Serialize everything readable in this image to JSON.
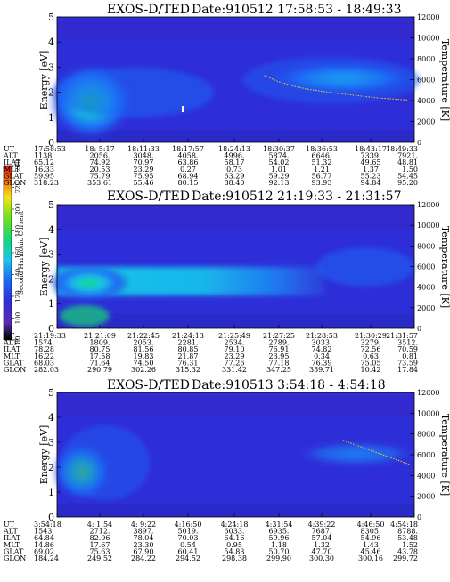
{
  "chart_data": {
    "type": "heatmap",
    "colorbar": {
      "label": "Second Harmonic Current",
      "ticks": [
        "80",
        "100",
        "120",
        "140",
        "160",
        "180",
        "200",
        "220",
        "240"
      ],
      "colors": [
        "#000000",
        "#5a2bb5",
        "#2e2ed8",
        "#1f66f5",
        "#19c6e8",
        "#15d875",
        "#6ee21a",
        "#f2e21a",
        "#f06a10",
        "#e21414"
      ]
    },
    "panels": [
      {
        "title": "EXOS-D/TED",
        "date": "Date:910512  17:58:53 - 18:49:33",
        "ylabel": "Energy [eV]",
        "ylabel_right": "Temperature [K]",
        "yticks": [
          "0",
          "1",
          "2",
          "3",
          "4",
          "5"
        ],
        "yticks_right": [
          "0",
          "2000",
          "4000",
          "6000",
          "8000",
          "10000",
          "12000"
        ],
        "ylim": [
          0,
          5
        ],
        "ylim_right": [
          0,
          12000
        ],
        "row_labels": [
          "UT",
          "ALT",
          "ILAT",
          "MLT",
          "GLAT",
          "GLON"
        ],
        "columns": [
          [
            "17:58:53",
            "1138.",
            "65.12",
            "16.33",
            "59.95",
            "318.23"
          ],
          [
            "18: 5:17",
            "2056.",
            "74.92",
            "20.53",
            "75.79",
            "353.61"
          ],
          [
            "18:11:33",
            "3048.",
            "70.97",
            "23.29",
            "75.95",
            "55.46"
          ],
          [
            "18:17:57",
            "4058.",
            "63.86",
            "0.27",
            "68.94",
            "80.15"
          ],
          [
            "18:24:13",
            "4996.",
            "58.17",
            "0.73",
            "63.29",
            "88.40"
          ],
          [
            "18:30:37",
            "5874.",
            "54.02",
            "1.01",
            "59.29",
            "92.13"
          ],
          [
            "18:36:53",
            "6646.",
            "51.32",
            "1.21",
            "56.77",
            "93.93"
          ],
          [
            "18:43:17",
            "7339.",
            "49.65",
            "1.37",
            "55.23",
            "94.84"
          ],
          [
            "18:49:33",
            "7921.",
            "48.81",
            "1.50",
            "54.45",
            "95.20"
          ]
        ],
        "temperature_curve_k": [
          [
            0.58,
            6400
          ],
          [
            0.62,
            5800
          ],
          [
            0.66,
            5400
          ],
          [
            0.7,
            5100
          ],
          [
            0.74,
            4900
          ],
          [
            0.78,
            4700
          ],
          [
            0.82,
            4550
          ],
          [
            0.86,
            4400
          ],
          [
            0.9,
            4250
          ],
          [
            0.94,
            4150
          ],
          [
            0.98,
            4050
          ]
        ]
      },
      {
        "title": "EXOS-D/TED",
        "date": "Date:910512  21:19:33 - 21:31:57",
        "ylabel": "Energy [eV]",
        "ylabel_right": "Temperature [K]",
        "yticks": [
          "0",
          "1",
          "2",
          "3",
          "4",
          "5"
        ],
        "yticks_right": [
          "0",
          "2000",
          "4000",
          "6000",
          "8000",
          "10000",
          "12000"
        ],
        "ylim": [
          0,
          5
        ],
        "ylim_right": [
          0,
          12000
        ],
        "row_labels": [
          "UT",
          "ALT",
          "ILAT",
          "MLT",
          "GLAT",
          "GLON"
        ],
        "columns": [
          [
            "21:19:33",
            "1574.",
            "78.28",
            "16.22",
            "68.03",
            "282.03"
          ],
          [
            "21:21:09",
            "1809.",
            "80.75",
            "17.58",
            "71.64",
            "290.79"
          ],
          [
            "21:22:45",
            "2053.",
            "81.56",
            "19.83",
            "74.50",
            "302.26"
          ],
          [
            "21:24:13",
            "2281.",
            "80.85",
            "21.87",
            "76.31",
            "315.32"
          ],
          [
            "21:25:49",
            "2534.",
            "79.10",
            "23.29",
            "77.26",
            "331.42"
          ],
          [
            "21:27:25",
            "2789.",
            "76.91",
            "23.95",
            "77.18",
            "347.25"
          ],
          [
            "21:28:53",
            "3033.",
            "74.82",
            "0.34",
            "76.39",
            "359.71"
          ],
          [
            "21:30:29",
            "3279.",
            "72.56",
            "0.63",
            "75.05",
            "10.42"
          ],
          [
            "21:31:57",
            "3512.",
            "70.59",
            "0.81",
            "73.59",
            "17.84"
          ]
        ],
        "temperature_curve_k": []
      },
      {
        "title": "EXOS-D/TED",
        "date": "Date:910513  3:54:18 - 4:54:18",
        "ylabel": "Energy [eV]",
        "ylabel_right": "Temperature [K]",
        "yticks": [
          "0",
          "1",
          "2",
          "3",
          "4",
          "5"
        ],
        "yticks_right": [
          "0",
          "2000",
          "4000",
          "6000",
          "8000",
          "10000",
          "12000"
        ],
        "ylim": [
          0,
          5
        ],
        "ylim_right": [
          0,
          12000
        ],
        "row_labels": [
          "UT",
          "ALT",
          "ILAT",
          "MLT",
          "GLAT",
          "GLON"
        ],
        "columns": [
          [
            "3:54:18",
            "1543.",
            "64.84",
            "14.86",
            "69.02",
            "184.24"
          ],
          [
            "4: 1:54",
            "2712.",
            "82.06",
            "17.67",
            "75.63",
            "249.52"
          ],
          [
            "4: 9:22",
            "3897.",
            "78.04",
            "23.30",
            "67.90",
            "284.22"
          ],
          [
            "4:16:50",
            "5019.",
            "70.03",
            "0.54",
            "60.41",
            "294.52"
          ],
          [
            "4:24:18",
            "6033.",
            "64.16",
            "0.95",
            "54.83",
            "298.38"
          ],
          [
            "4:31:54",
            "6935.",
            "59.96",
            "1.18",
            "50.70",
            "299.90"
          ],
          [
            "4:39:22",
            "7687.",
            "57.04",
            "1.32",
            "47.70",
            "300.30"
          ],
          [
            "4:46:50",
            "8305.",
            "54.96",
            "1.43",
            "45.46",
            "300.16"
          ],
          [
            "4:54:18",
            "8788.",
            "53.48",
            "1.52",
            "43.78",
            "299.72"
          ]
        ],
        "temperature_curve_k": [
          [
            0.8,
            7400
          ],
          [
            0.84,
            6900
          ],
          [
            0.88,
            6400
          ],
          [
            0.92,
            5900
          ],
          [
            0.96,
            5400
          ],
          [
            0.99,
            5000
          ]
        ]
      }
    ]
  }
}
